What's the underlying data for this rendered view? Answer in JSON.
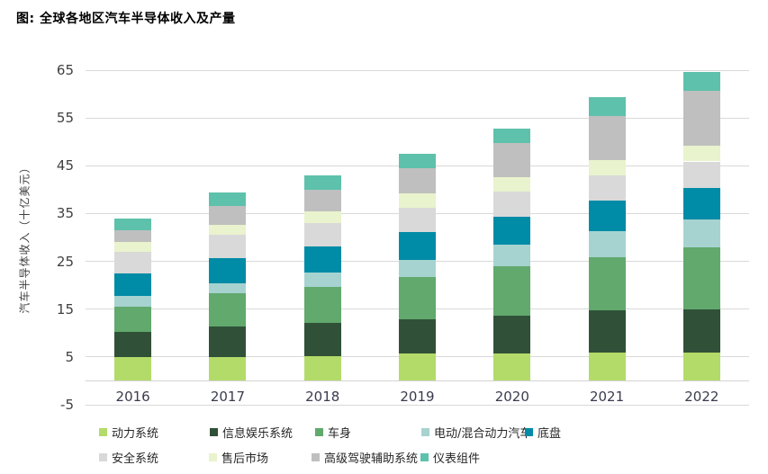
{
  "title": "图: 全球各地区汽车半导体收入及产量",
  "chart_data": {
    "type": "bar",
    "stacked": true,
    "title": "图: 全球各地区汽车半导体收入及产量",
    "ylabel": "汽车半导体收入（十亿美元）",
    "xlabel": "",
    "categories": [
      "2016",
      "2017",
      "2018",
      "2019",
      "2020",
      "2021",
      "2022"
    ],
    "ylim": [
      -5,
      65
    ],
    "yticks": [
      65,
      55,
      45,
      35,
      25,
      15,
      5,
      -5
    ],
    "grid": true,
    "legend_position": "bottom",
    "series": [
      {
        "name": "动力系统",
        "color": "#b3db69",
        "values": [
          5.0,
          5.0,
          5.2,
          5.8,
          5.8,
          6.0,
          6.0
        ]
      },
      {
        "name": "信息娱乐系统",
        "color": "#305138",
        "values": [
          5.2,
          6.4,
          6.9,
          7.1,
          7.9,
          8.8,
          9.0
        ]
      },
      {
        "name": "车身",
        "color": "#61a96d",
        "values": [
          5.4,
          6.9,
          7.6,
          8.8,
          10.3,
          11.1,
          12.9
        ]
      },
      {
        "name": "电动/混合动力汽车",
        "color": "#a6d3d0",
        "values": [
          2.2,
          2.1,
          2.9,
          3.6,
          4.5,
          5.5,
          5.9
        ]
      },
      {
        "name": "底盘",
        "color": "#008ba6",
        "values": [
          4.7,
          5.3,
          5.5,
          5.9,
          5.8,
          6.4,
          6.6
        ]
      },
      {
        "name": "安全系统",
        "color": "#d9d9d9",
        "values": [
          4.5,
          4.9,
          5.0,
          5.0,
          5.3,
          5.2,
          5.5
        ]
      },
      {
        "name": "售后市场",
        "color": "#e9f3cd",
        "values": [
          2.0,
          2.1,
          2.3,
          3.0,
          3.0,
          3.2,
          3.3
        ]
      },
      {
        "name": "高级驾驶辅助系统",
        "color": "#bfbfbf",
        "values": [
          2.5,
          3.9,
          4.6,
          5.3,
          7.2,
          9.2,
          11.5
        ]
      },
      {
        "name": "仪表组件",
        "color": "#5ec1ab",
        "values": [
          2.5,
          2.8,
          3.0,
          3.0,
          3.0,
          3.9,
          4.0
        ]
      }
    ],
    "totals": [
      34.0,
      39.4,
      43.0,
      47.5,
      52.8,
      59.3,
      64.7
    ]
  },
  "colors": {
    "grid": "#d9d9d9",
    "axis": "#d3d3d3",
    "tick_text": "#404040",
    "category_text": "#3b3b4f",
    "legend_text": "#262626"
  }
}
